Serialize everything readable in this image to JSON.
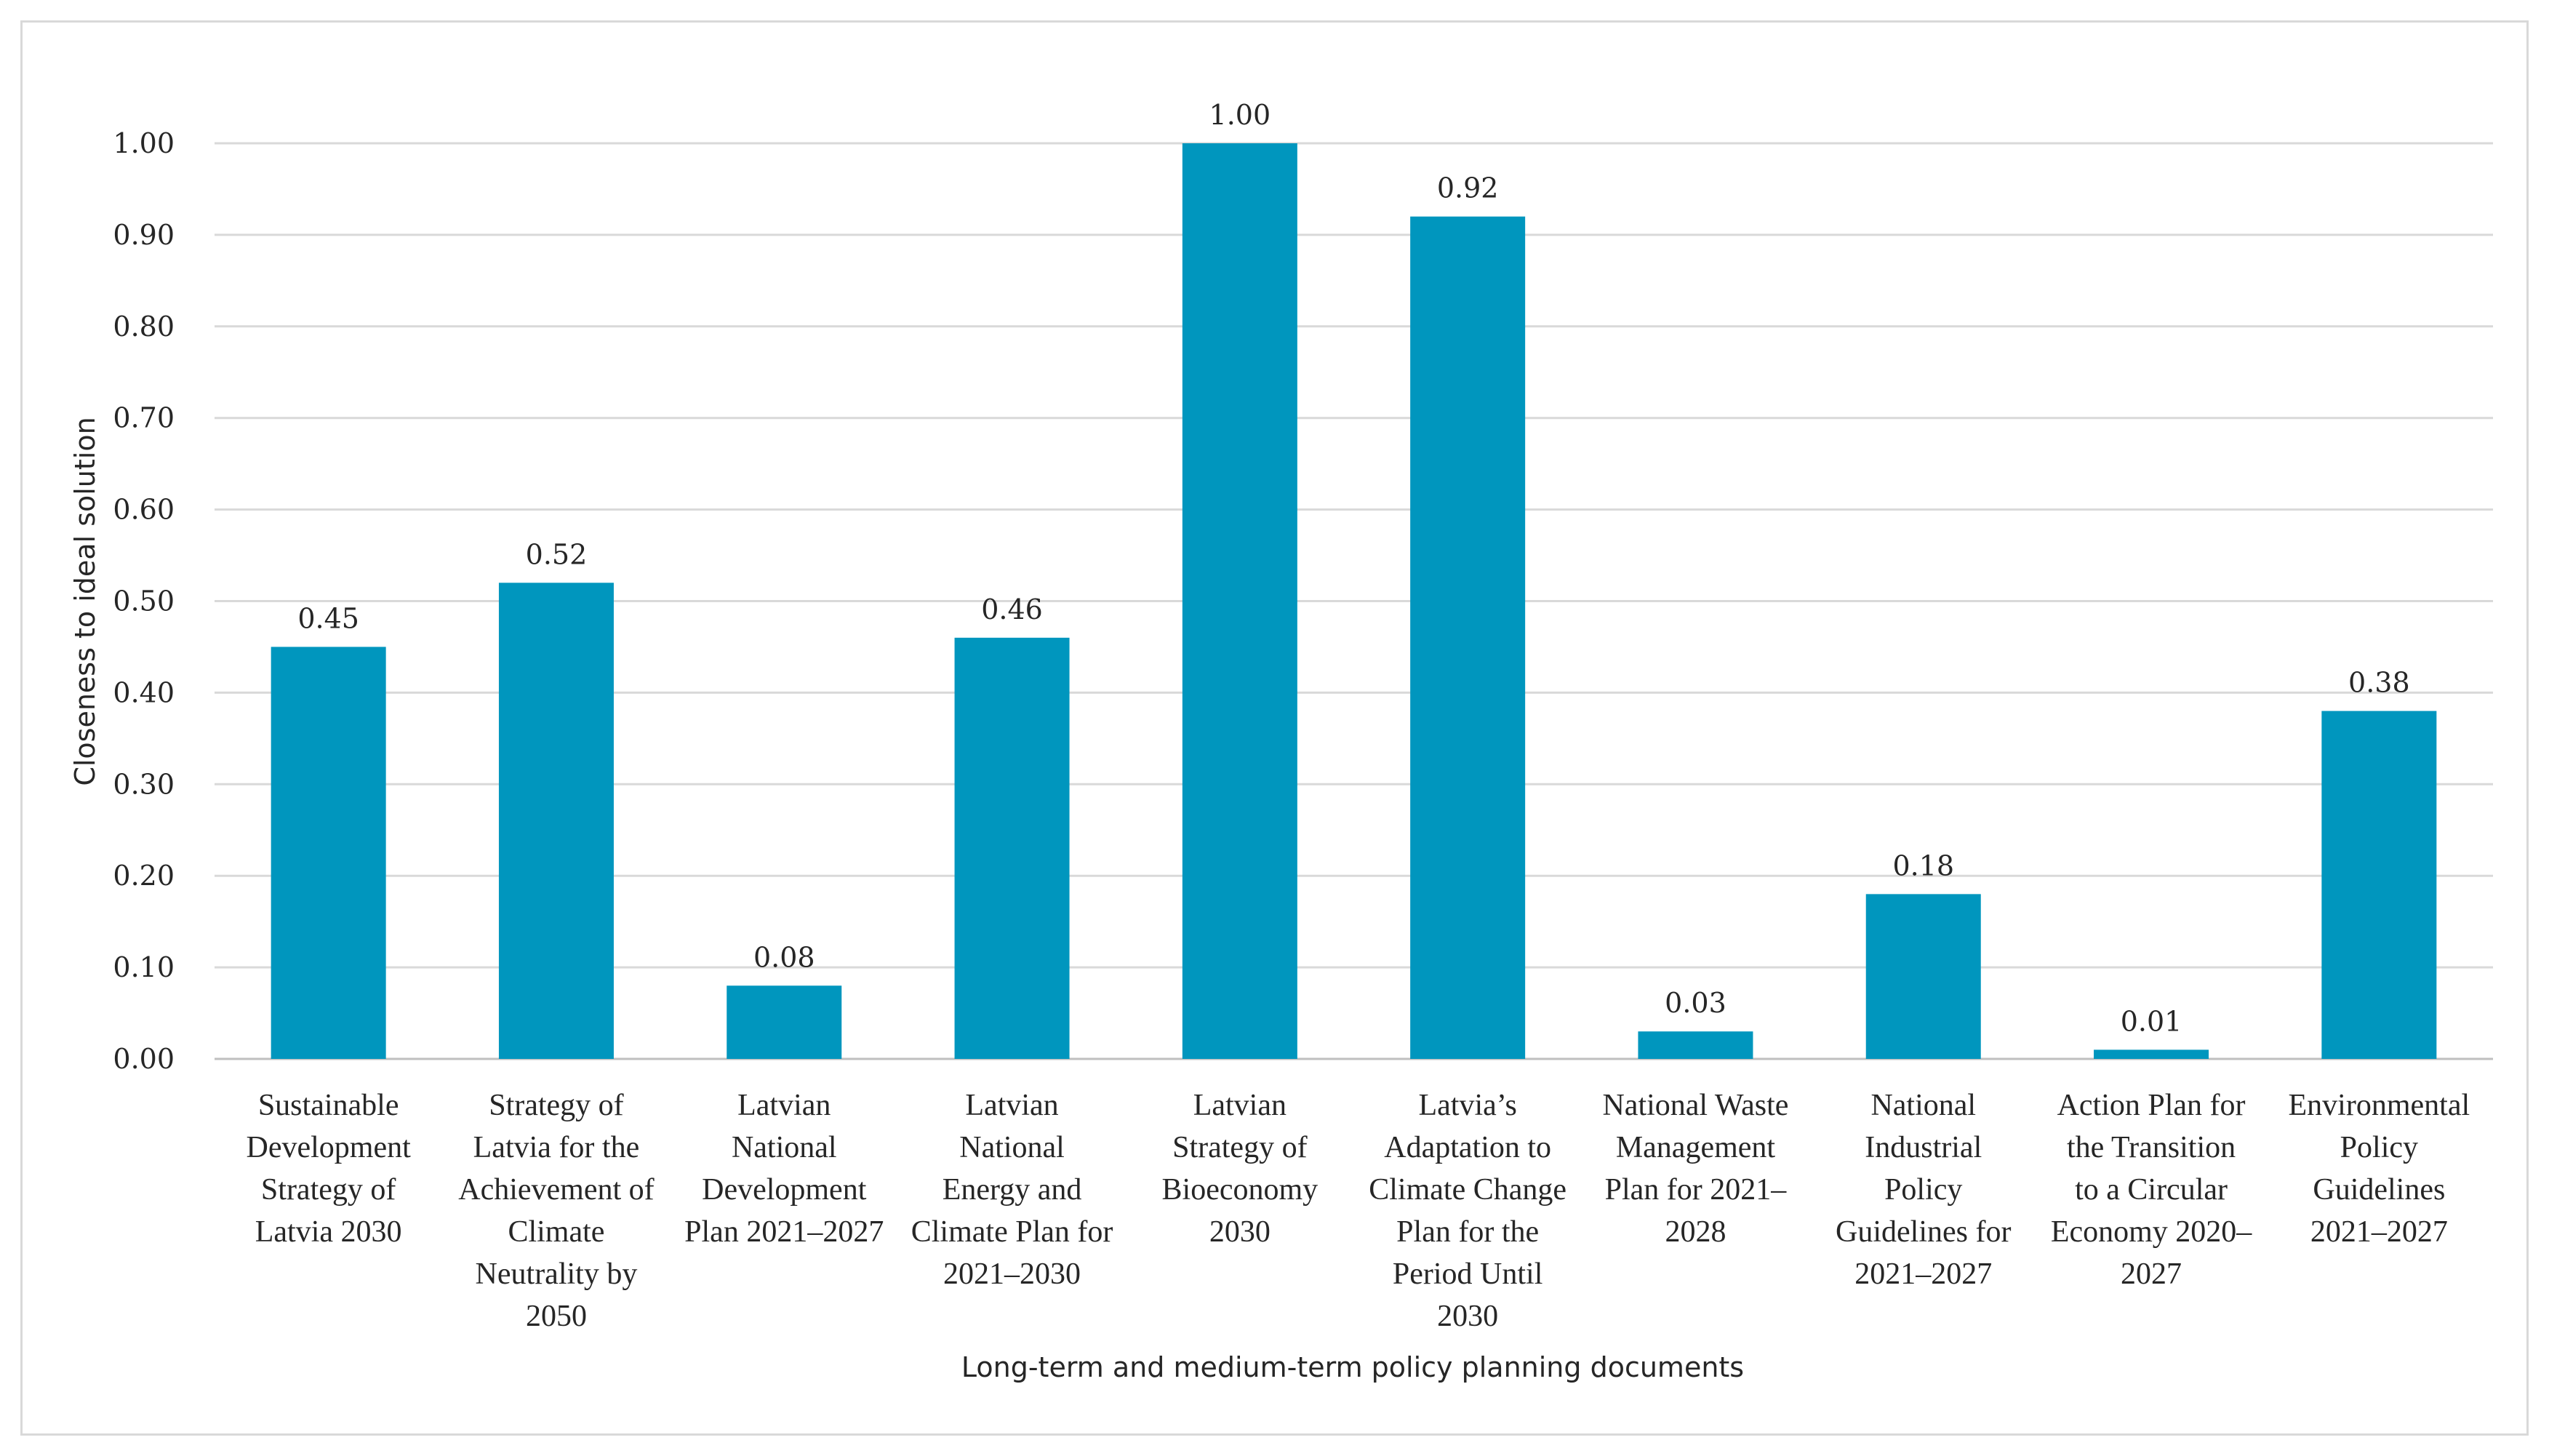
{
  "chart_data": {
    "type": "bar",
    "title": "",
    "xlabel": "Long-term and medium-term policy planning documents",
    "ylabel": "Closeness to ideal solution",
    "ylim": [
      0,
      1.0
    ],
    "yticks": [
      "0.00",
      "0.10",
      "0.20",
      "0.30",
      "0.40",
      "0.50",
      "0.60",
      "0.70",
      "0.80",
      "0.90",
      "1.00"
    ],
    "grid": true,
    "bar_color": "#0096BE",
    "categories": [
      [
        "Sustainable",
        "Development",
        "Strategy of",
        "Latvia 2030"
      ],
      [
        "Strategy of",
        "Latvia for the",
        "Achievement of",
        "Climate",
        "Neutrality by",
        "2050"
      ],
      [
        "Latvian",
        "National",
        "Development",
        "Plan 2021–2027"
      ],
      [
        "Latvian",
        "National",
        "Energy and",
        "Climate Plan for",
        "2021–2030"
      ],
      [
        "Latvian",
        "Strategy of",
        "Bioeconomy",
        "2030"
      ],
      [
        "Latvia’s",
        "Adaptation to",
        "Climate Change",
        "Plan for the",
        "Period Until",
        "2030"
      ],
      [
        "National Waste",
        "Management",
        "Plan for 2021–",
        "2028"
      ],
      [
        "National",
        "Industrial",
        "Policy",
        "Guidelines for",
        "2021–2027"
      ],
      [
        "Action Plan for",
        "the Transition",
        "to a Circular",
        "Economy 2020–",
        "2027"
      ],
      [
        "Environmental",
        "Policy",
        "Guidelines",
        "2021–2027"
      ]
    ],
    "values": [
      0.45,
      0.52,
      0.08,
      0.46,
      1.0,
      0.92,
      0.03,
      0.18,
      0.01,
      0.38
    ],
    "value_labels": [
      "0.45",
      "0.52",
      "0.08",
      "0.46",
      "1.00",
      "0.92",
      "0.03",
      "0.18",
      "0.01",
      "0.38"
    ]
  }
}
